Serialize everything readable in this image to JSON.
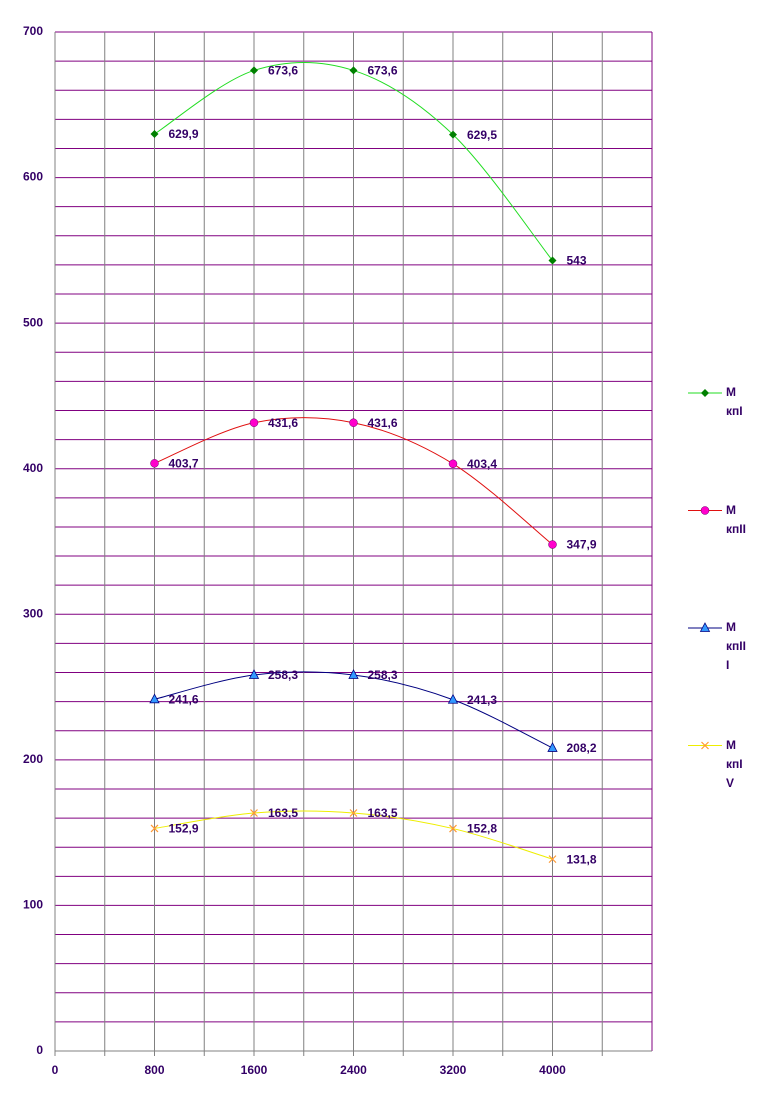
{
  "chart_data": {
    "type": "line",
    "x": [
      800,
      1600,
      2400,
      3200,
      4000
    ],
    "xlim": [
      0,
      4800
    ],
    "xticks": [
      0,
      800,
      1600,
      2400,
      3200,
      4000
    ],
    "ylim": [
      0,
      700
    ],
    "yticks": [
      0,
      100,
      200,
      300,
      400,
      500,
      600,
      700
    ],
    "grid": true,
    "smooth": true,
    "legend": "right",
    "series": [
      {
        "name": "M кпI",
        "color": "#22dd22",
        "marker_color": "#008000",
        "marker": "diamond",
        "values": [
          629.9,
          673.6,
          673.6,
          629.5,
          543
        ],
        "value_labels": [
          "629,9",
          "673,6",
          "673,6",
          "629,5",
          "543"
        ]
      },
      {
        "name": "M кпII",
        "color": "#e01010",
        "marker_color": "#ff00cc",
        "marker": "circle",
        "values": [
          403.7,
          431.6,
          431.6,
          403.4,
          347.9
        ],
        "value_labels": [
          "403,7",
          "431,6",
          "431,6",
          "403,4",
          "347,9"
        ]
      },
      {
        "name": "M кпIII",
        "color": "#000080",
        "marker_color": "#3399ff",
        "marker": "triangle",
        "values": [
          241.6,
          258.3,
          258.3,
          241.3,
          208.2
        ],
        "value_labels": [
          "241,6",
          "258,3",
          "258,3",
          "241,3",
          "208,2"
        ]
      },
      {
        "name": "M кпIV",
        "color": "#eeee00",
        "marker_color": "#ff9933",
        "marker": "x",
        "values": [
          152.9,
          163.5,
          163.5,
          152.8,
          131.8
        ],
        "value_labels": [
          "152,9",
          "163,5",
          "163,5",
          "152,8",
          "131,8"
        ]
      }
    ]
  }
}
